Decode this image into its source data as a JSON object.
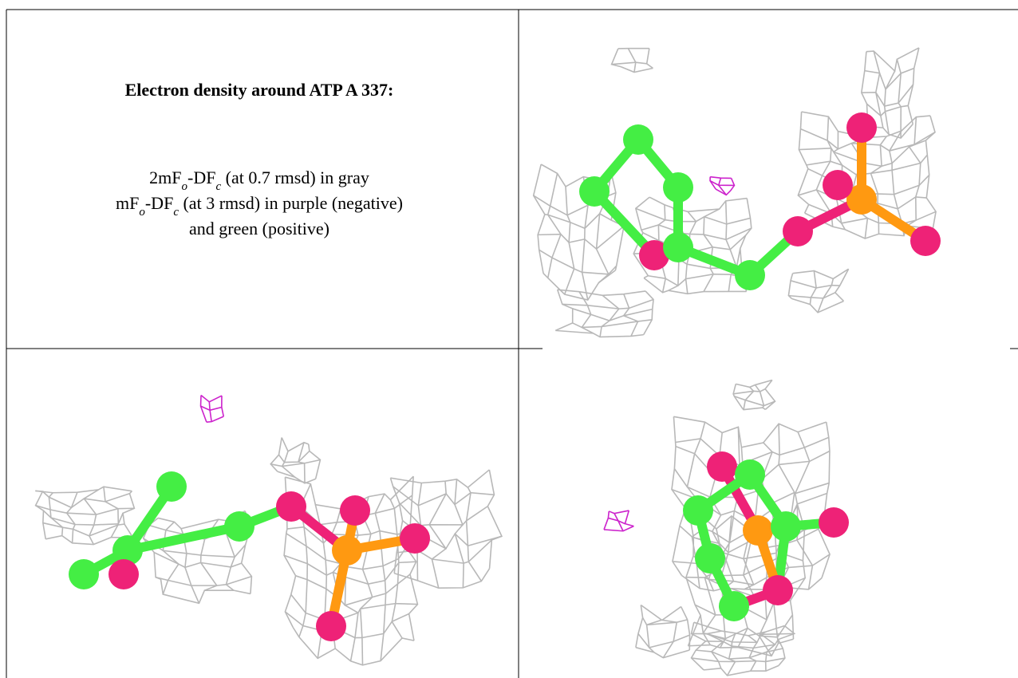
{
  "cell_text": {
    "title": "Electron density around ATP A 337:",
    "lines": [
      [
        "2mF",
        "o",
        "-DF",
        "c",
        " (at 0.7 rmsd) in gray"
      ],
      [
        "mF",
        "o",
        "-DF",
        "c",
        " (at 3 rmsd) in purple (negative)"
      ],
      [
        "and green (positive)"
      ]
    ]
  }
}
